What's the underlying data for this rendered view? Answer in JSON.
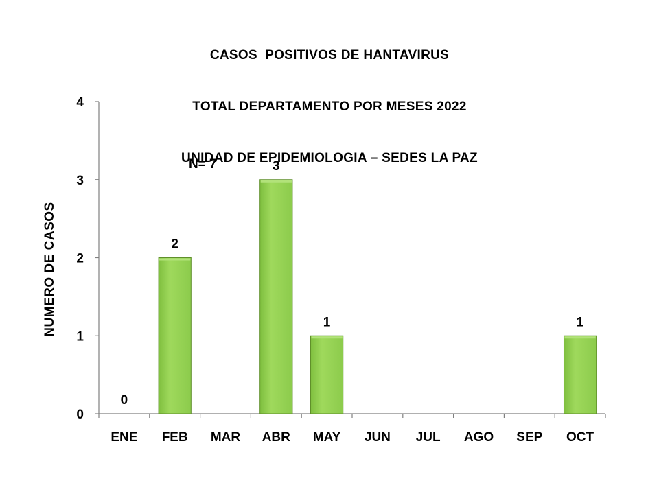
{
  "chart_data": {
    "type": "bar",
    "title": [
      "CASOS  POSITIVOS DE HANTAVIRUS",
      "TOTAL DEPARTAMENTO POR MESES 2022",
      "UNIDAD DE EPIDEMIOLOGIA – SEDES LA PAZ"
    ],
    "ylabel": "NUMERO DE CASOS",
    "xlabel": "",
    "categories": [
      "ENE",
      "FEB",
      "MAR",
      "ABR",
      "MAY",
      "JUN",
      "JUL",
      "AGO",
      "SEP",
      "OCT"
    ],
    "values": [
      0,
      2,
      null,
      3,
      1,
      null,
      null,
      null,
      null,
      1
    ],
    "data_labels": [
      "0",
      "2",
      "",
      "3",
      "1",
      "",
      "",
      "",
      "",
      "1"
    ],
    "ylim": [
      0,
      4
    ],
    "yticks": [
      "0",
      "1",
      "2",
      "3",
      "4"
    ],
    "annotation": "N= 7",
    "grid": false,
    "legend": "none",
    "colors": {
      "bar_fill": "#92d050",
      "bar_fill_light": "#b2e27a",
      "bar_edge": "#5f8f2a",
      "axis": "#808080"
    }
  }
}
